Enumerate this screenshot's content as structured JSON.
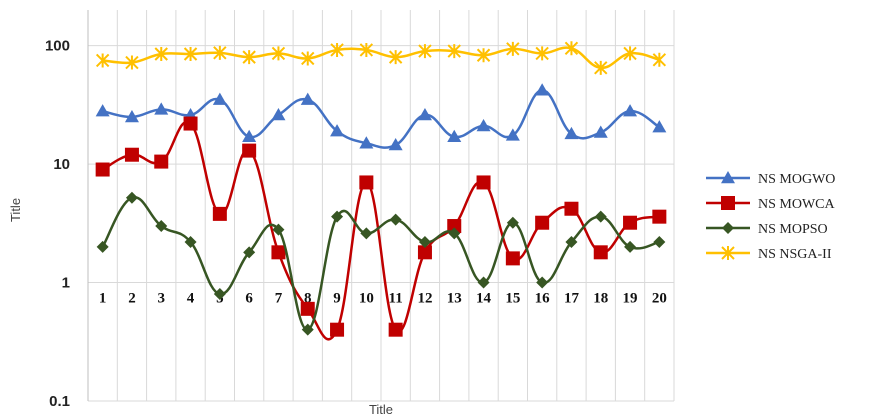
{
  "chart_data": {
    "type": "line",
    "title": "",
    "xlabel": "Title",
    "ylabel": "Title",
    "yscale": "log",
    "ylim": [
      0.1,
      200
    ],
    "yticks": [
      {
        "value": 0.1,
        "label": "0.1"
      },
      {
        "value": 1,
        "label": "1"
      },
      {
        "value": 10,
        "label": "10"
      },
      {
        "value": 100,
        "label": "100"
      }
    ],
    "categories": [
      "1",
      "2",
      "3",
      "4",
      "5",
      "6",
      "7",
      "8",
      "9",
      "10",
      "11",
      "12",
      "13",
      "14",
      "15",
      "16",
      "17",
      "18",
      "19",
      "20"
    ],
    "grid": true,
    "legend_position": "right",
    "series": [
      {
        "name": "NS MOGWO",
        "color": "#4472C4",
        "marker": "triangle",
        "values": [
          28,
          25,
          29,
          26,
          35,
          17,
          26,
          35,
          19,
          15,
          14.5,
          26,
          17,
          21,
          17.5,
          42,
          18,
          18.5,
          28,
          20.5
        ]
      },
      {
        "name": "NS MOWCA",
        "color": "#C00000",
        "marker": "square",
        "values": [
          9,
          12,
          10.5,
          22,
          3.8,
          13,
          1.8,
          0.6,
          0.4,
          7,
          0.4,
          1.8,
          3,
          7,
          1.6,
          3.2,
          4.2,
          1.8,
          3.2,
          3.6
        ]
      },
      {
        "name": "NS MOPSO",
        "color": "#375623",
        "marker": "diamond",
        "values": [
          2,
          5.2,
          3,
          2.2,
          0.8,
          1.8,
          2.8,
          0.4,
          3.6,
          2.6,
          3.4,
          2.2,
          2.6,
          1,
          3.2,
          1,
          2.2,
          3.6,
          2,
          2.2
        ]
      },
      {
        "name": "NS NSGA-II",
        "color": "#FFC000",
        "marker": "asterisk",
        "values": [
          75,
          72,
          85,
          85,
          87,
          80,
          86,
          78,
          92,
          92,
          80,
          90,
          90,
          83,
          94,
          86,
          95,
          65,
          86,
          76
        ]
      }
    ]
  }
}
